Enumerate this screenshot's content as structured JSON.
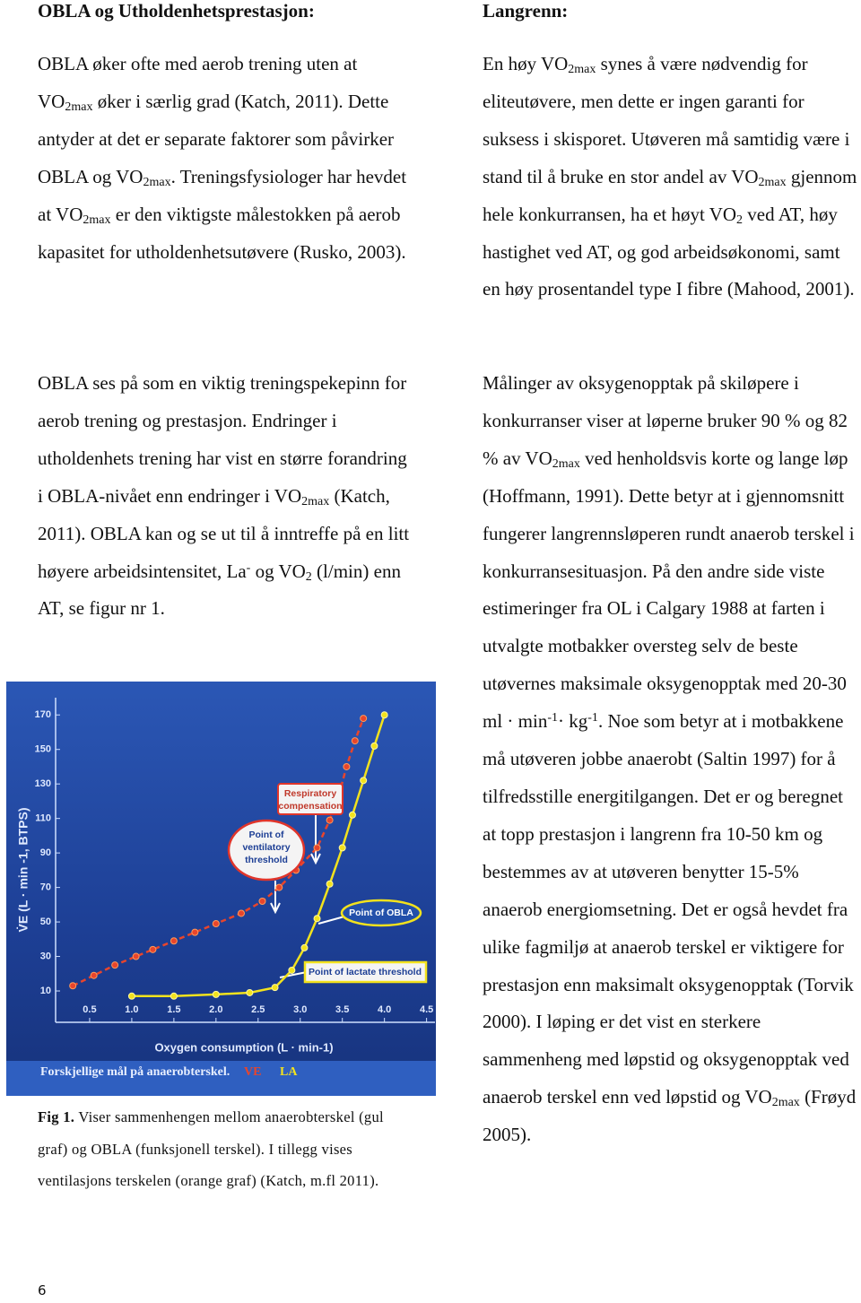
{
  "left": {
    "heading": "OBLA og Utholdenhetsprestasjon:",
    "paragraphs": [
      [
        "OBLA øker ofte med aerob trening uten at VO",
        {
          "sub": "2max"
        },
        " øker i særlig grad (Katch, 2011). Dette antyder at det er separate faktorer som påvirker OBLA og VO",
        {
          "sub": "2max"
        },
        ". Treningsfysiologer har hevdet at VO",
        {
          "sub": "2max"
        },
        " er den viktigste målestokken på aerob kapasitet for utholdenhetsutøvere (Rusko, 2003)."
      ],
      [
        "OBLA ses på som en viktig treningspekepinn for aerob trening og prestasjon. Endringer i utholdenhets trening har vist en større forandring i OBLA-nivået enn endringer i VO",
        {
          "sub": "2max"
        },
        " (Katch, 2011). OBLA kan og se ut til å inntreffe på en litt høyere arbeidsintensitet, La",
        {
          "sup": "-"
        },
        " og VO",
        {
          "sub": "2"
        },
        " (l/min) enn AT, se figur nr 1."
      ]
    ]
  },
  "figure": {
    "type": "line",
    "y_label": "V̇E (L · min -1, BTPS)",
    "x_label": "Oxygen consumption (L · min-1)",
    "note": "Forskjellige mål på anaerobterskel.",
    "xlim": [
      0,
      4.6
    ],
    "xticks": [
      0.5,
      {
        "value": 1,
        "label": "1.0"
      },
      1.5,
      {
        "value": 2,
        "label": "2.0"
      },
      2.5,
      {
        "value": 3,
        "label": "3.0"
      },
      3.5,
      {
        "value": 4,
        "label": "4.0"
      },
      4.5
    ],
    "ylim": [
      -10,
      180
    ],
    "yticks": [
      10,
      30,
      50,
      70,
      90,
      110,
      130,
      150,
      170
    ],
    "series": [
      {
        "name": "VE",
        "color": "#e8452c",
        "x": [
          0.3,
          0.55,
          0.8,
          1.05,
          1.25,
          1.5,
          1.75,
          2.0,
          2.3,
          2.55,
          2.75,
          2.95,
          3.2,
          3.35,
          3.45,
          3.55,
          3.65,
          3.75
        ],
        "values": [
          13,
          19,
          25,
          30,
          34,
          39,
          44,
          49,
          55,
          62,
          70,
          80,
          93,
          109,
          122,
          140,
          155,
          168
        ]
      },
      {
        "name": "LA",
        "color": "#f2e21d",
        "x": [
          1.0,
          1.5,
          2.0,
          2.4,
          2.7,
          2.9,
          3.05,
          3.2,
          3.35,
          3.5,
          3.62,
          3.75,
          3.88,
          4.0
        ],
        "values": [
          7,
          7,
          8,
          9,
          12,
          22,
          35,
          52,
          72,
          93,
          112,
          132,
          152,
          170
        ]
      }
    ],
    "annotations": [
      [
        "Respiratory",
        "compensation"
      ],
      [
        "Point of",
        "ventilatory",
        "threshold"
      ],
      [
        "Point of OBLA"
      ],
      [
        "Point of lactate threshold"
      ]
    ]
  },
  "caption": [
    {
      "bold": "Fig 1."
    },
    " Viser sammenhengen mellom anaerobterskel (gul graf) og OBLA (funksjonell terskel). I tillegg vises ventilasjons terskelen (orange graf) (Katch, m.fl 2011)."
  ],
  "right": {
    "heading": "Langrenn:",
    "paragraphs": [
      [
        "En høy VO",
        {
          "sub": "2max"
        },
        " synes å være nødvendig for eliteutøvere, men dette er ingen garanti for suksess i skisporet. Utøveren må samtidig være i stand til å bruke en stor andel av VO",
        {
          "sub": "2max"
        },
        " gjennom hele konkurransen, ha et høyt VO",
        {
          "sub": "2"
        },
        " ved AT, høy hastighet ved AT, og god arbeidsøkonomi, samt en høy prosentandel type I fibre (Mahood, 2001)."
      ],
      [
        "Målinger av oksygenopptak på skiløpere i konkurranser viser at løperne bruker 90 % og 82 % av VO",
        {
          "sub": "2max"
        },
        " ved henholdsvis korte og lange løp (Hoffmann, 1991). Dette betyr at i gjennomsnitt fungerer langrennsløperen rundt anaerob terskel i konkurransesituasjon. På den andre side viste estimeringer fra OL i Calgary 1988 at farten i utvalgte motbakker oversteg selv de beste utøvernes maksimale oksygenopptak med 20-30 ml · min",
        {
          "sup": "-1"
        },
        "· kg",
        {
          "sup": "-1"
        },
        ". Noe som betyr at i motbakkene må utøveren jobbe anaerobt (Saltin 1997) for å tilfredsstille energitilgangen. Det er og beregnet at topp prestasjon i langrenn fra 10-50 km og bestemmes av at utøveren benytter  15-5% anaerob energiomsetning. Det er også hevdet fra ulike fagmiljø at anaerob terskel er viktigere for prestasjon enn maksimalt oksygenopptak (Torvik 2000). I løping er det vist en sterkere sammenheng med løpstid og oksygenopptak ved anaerob terskel enn ved løpstid og VO",
        {
          "sub": "2max"
        },
        " (Frøyd 2005)."
      ]
    ]
  },
  "page_number": "6"
}
